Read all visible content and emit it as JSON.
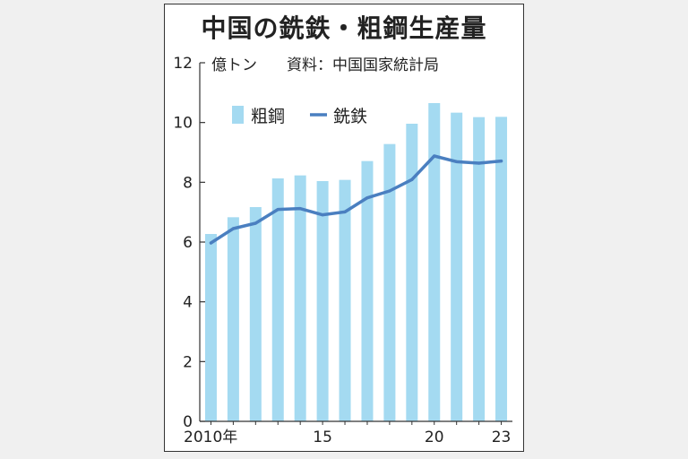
{
  "chart_data": {
    "type": "bar",
    "title": "中国の銑鉄・粗鋼生産量",
    "unit_label": "億トン",
    "source": "資料：中国国家統計局",
    "x": [
      2010,
      2011,
      2012,
      2013,
      2014,
      2015,
      2016,
      2017,
      2018,
      2019,
      2020,
      2021,
      2022,
      2023
    ],
    "x_tick_labels": [
      {
        "x": 2010,
        "label": "2010年"
      },
      {
        "x": 2015,
        "label": "15"
      },
      {
        "x": 2020,
        "label": "20"
      },
      {
        "x": 2023,
        "label": "23"
      }
    ],
    "ylim": [
      0,
      12
    ],
    "y_ticks": [
      0,
      2,
      4,
      6,
      8,
      10,
      12
    ],
    "grid": false,
    "legend_position": "top-left",
    "series": [
      {
        "name": "粗鋼",
        "type": "bar",
        "color": "#a4daf1",
        "values": [
          6.27,
          6.83,
          7.17,
          8.13,
          8.23,
          8.04,
          8.08,
          8.71,
          9.28,
          9.96,
          10.65,
          10.33,
          10.18,
          10.19
        ]
      },
      {
        "name": "銑鉄",
        "type": "line",
        "color": "#4a7fc0",
        "values": [
          5.97,
          6.45,
          6.63,
          7.09,
          7.12,
          6.91,
          7.01,
          7.48,
          7.71,
          8.09,
          8.88,
          8.69,
          8.64,
          8.71
        ]
      }
    ]
  }
}
